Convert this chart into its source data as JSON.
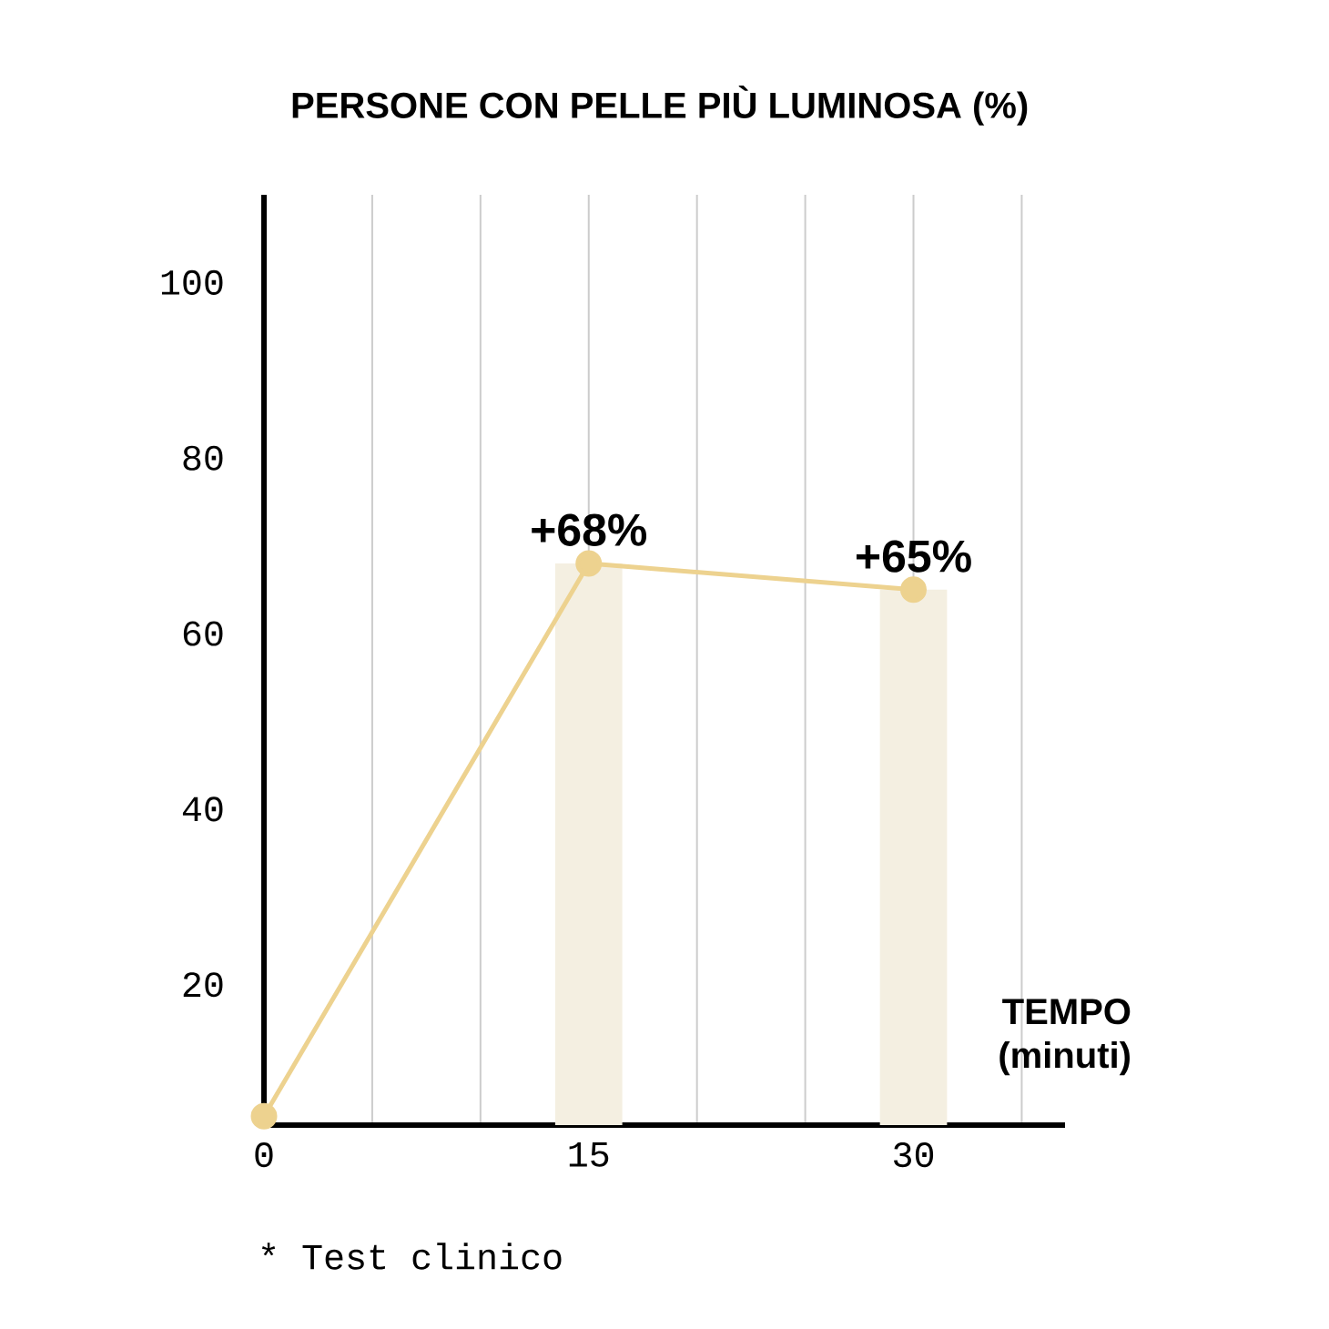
{
  "chart_data": {
    "type": "line",
    "title": "PERSONE CON PELLE PIÙ LUMINOSA (%)",
    "xlabel": "TEMPO (minuti)",
    "x": [
      0,
      15,
      30
    ],
    "xlim": [
      0,
      37
    ],
    "xticks": [
      0,
      {
        "value": 5,
        "label": null
      },
      {
        "value": 10,
        "label": null
      },
      15,
      {
        "value": 20,
        "label": null
      },
      {
        "value": 25,
        "label": null
      },
      30,
      {
        "value": 35,
        "label": null
      }
    ],
    "ylim": [
      4,
      110
    ],
    "yticks": [
      20,
      40,
      60,
      80,
      100
    ],
    "grid": "x",
    "marker": "circle",
    "line_style": "solid",
    "series": [
      {
        "type": "bar",
        "color": "#f4efe1",
        "values": [
          null,
          68,
          65
        ]
      },
      {
        "color": "#edd28f",
        "values": [
          5,
          68,
          65
        ],
        "value_labels": [
          null,
          "+68%",
          "+65%"
        ]
      }
    ],
    "annotations": [
      "* Test clinico"
    ]
  }
}
